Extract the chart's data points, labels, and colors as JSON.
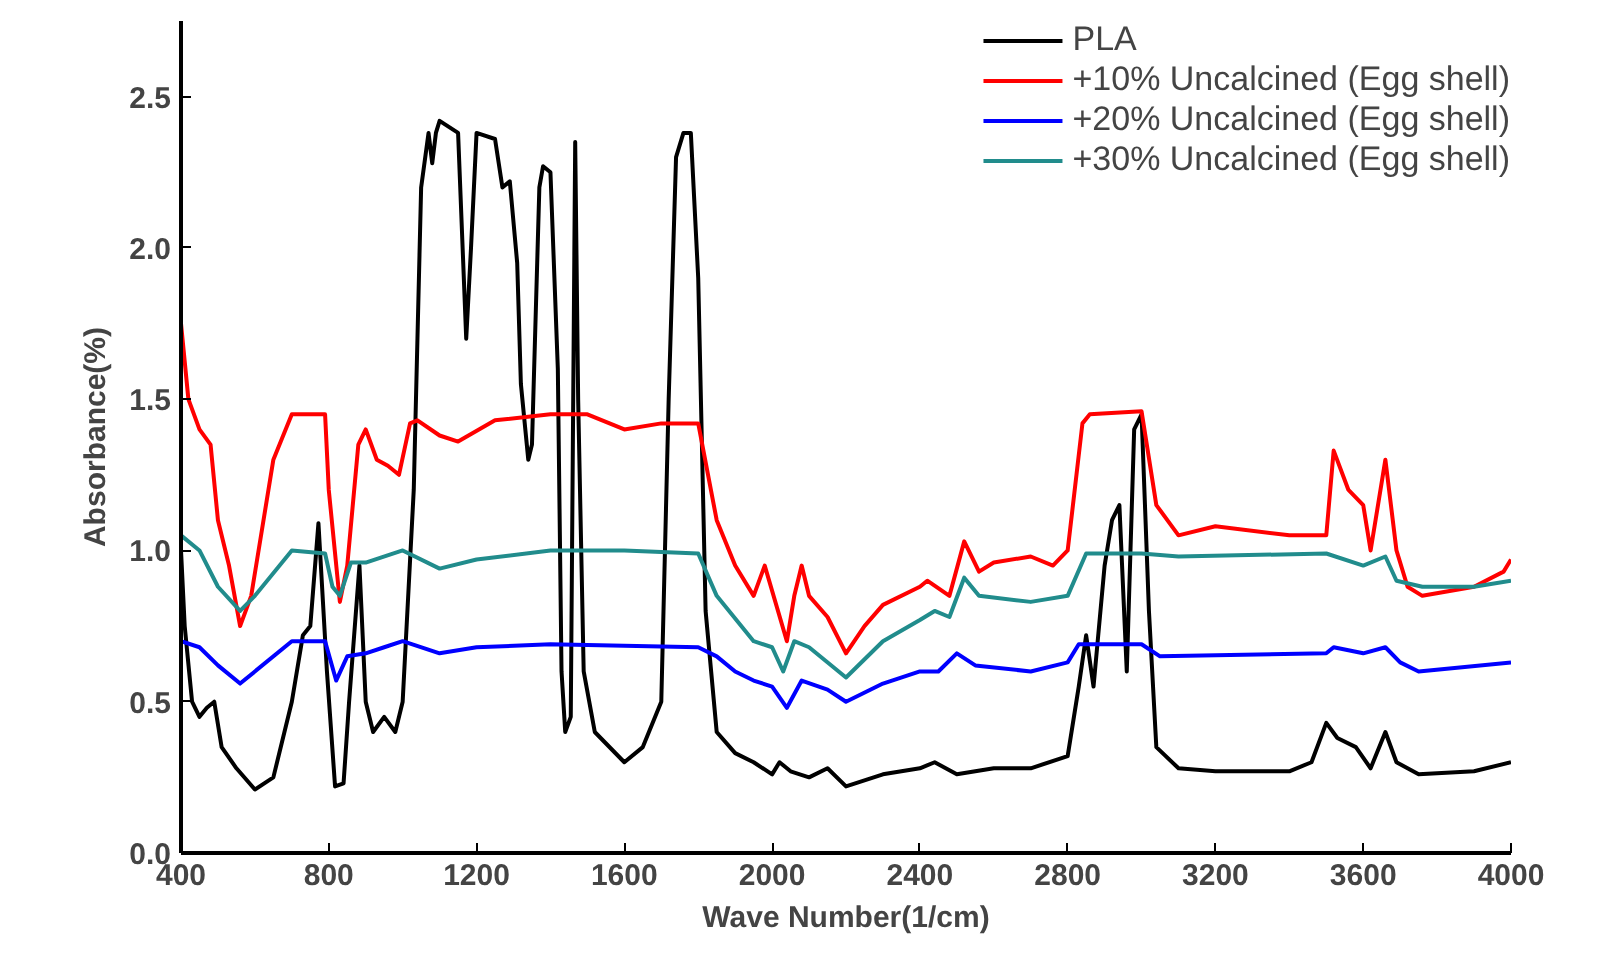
{
  "chart_data": {
    "type": "line",
    "xlabel": "Wave Number(1/cm)",
    "ylabel": "Absorbance(%)",
    "xlim": [
      400,
      4000
    ],
    "xticks": [
      400,
      800,
      1200,
      1600,
      2000,
      2400,
      2800,
      3200,
      3600,
      4000
    ],
    "ylim": [
      0,
      2.75
    ],
    "yticks": [
      {
        "value": 0,
        "label": "0.0"
      },
      {
        "value": 0.5,
        "label": "0.5"
      },
      {
        "value": 1,
        "label": "1.0"
      },
      {
        "value": 1.5,
        "label": "1.5"
      },
      {
        "value": 2,
        "label": "2.0"
      },
      {
        "value": 2.5,
        "label": "2.5"
      }
    ],
    "grid": false,
    "legend": "top right",
    "marker": "none",
    "line_style": "solid",
    "series": [
      {
        "name": "PLA",
        "color": "#000000",
        "x": [
          400,
          410,
          430,
          450,
          470,
          490,
          510,
          550,
          600,
          650,
          700,
          730,
          750,
          772,
          795,
          817,
          840,
          855,
          883,
          900,
          920,
          950,
          980,
          1000,
          1030,
          1050,
          1070,
          1080,
          1090,
          1100,
          1150,
          1172,
          1185,
          1200,
          1250,
          1270,
          1290,
          1310,
          1320,
          1340,
          1350,
          1370,
          1380,
          1400,
          1420,
          1430,
          1440,
          1455,
          1467,
          1475,
          1490,
          1520,
          1600,
          1650,
          1700,
          1720,
          1740,
          1760,
          1780,
          1800,
          1820,
          1850,
          1900,
          1950,
          2000,
          2020,
          2050,
          2100,
          2150,
          2200,
          2300,
          2400,
          2440,
          2500,
          2600,
          2700,
          2800,
          2830,
          2850,
          2870,
          2900,
          2920,
          2940,
          2960,
          2980,
          3000,
          3020,
          3040,
          3100,
          3200,
          3400,
          3460,
          3500,
          3530,
          3580,
          3620,
          3660,
          3690,
          3750,
          3900,
          4000
        ],
        "values": [
          1.0,
          0.75,
          0.5,
          0.45,
          0.48,
          0.5,
          0.35,
          0.28,
          0.21,
          0.25,
          0.5,
          0.72,
          0.75,
          1.09,
          0.6,
          0.22,
          0.23,
          0.5,
          0.95,
          0.5,
          0.4,
          0.45,
          0.4,
          0.5,
          1.2,
          2.2,
          2.38,
          2.28,
          2.38,
          2.42,
          2.38,
          1.7,
          2.0,
          2.38,
          2.36,
          2.2,
          2.22,
          1.95,
          1.55,
          1.3,
          1.35,
          2.2,
          2.27,
          2.25,
          1.6,
          0.6,
          0.4,
          0.45,
          2.35,
          1.5,
          0.6,
          0.4,
          0.3,
          0.35,
          0.5,
          1.5,
          2.3,
          2.38,
          2.38,
          1.9,
          0.8,
          0.4,
          0.33,
          0.3,
          0.26,
          0.3,
          0.27,
          0.25,
          0.28,
          0.22,
          0.26,
          0.28,
          0.3,
          0.26,
          0.28,
          0.28,
          0.32,
          0.55,
          0.72,
          0.55,
          0.95,
          1.1,
          1.15,
          0.6,
          1.4,
          1.45,
          0.8,
          0.35,
          0.28,
          0.27,
          0.27,
          0.3,
          0.43,
          0.38,
          0.35,
          0.28,
          0.4,
          0.3,
          0.26,
          0.27,
          0.3
        ]
      },
      {
        "name": "+10% Uncalcined (Egg shell)",
        "color": "#ff0000",
        "x": [
          400,
          420,
          450,
          480,
          500,
          530,
          560,
          590,
          650,
          700,
          750,
          790,
          800,
          830,
          850,
          880,
          900,
          930,
          960,
          990,
          1020,
          1040,
          1100,
          1150,
          1250,
          1400,
          1500,
          1600,
          1700,
          1800,
          1850,
          1900,
          1950,
          1980,
          2040,
          2060,
          2080,
          2100,
          2150,
          2200,
          2250,
          2300,
          2400,
          2420,
          2480,
          2520,
          2560,
          2600,
          2700,
          2760,
          2800,
          2840,
          2860,
          3000,
          3040,
          3100,
          3200,
          3400,
          3500,
          3520,
          3560,
          3600,
          3620,
          3660,
          3690,
          3720,
          3760,
          3900,
          3980,
          4000
        ],
        "values": [
          1.75,
          1.5,
          1.4,
          1.35,
          1.1,
          0.95,
          0.75,
          0.85,
          1.3,
          1.45,
          1.45,
          1.45,
          1.2,
          0.83,
          0.95,
          1.35,
          1.4,
          1.3,
          1.28,
          1.25,
          1.42,
          1.43,
          1.38,
          1.36,
          1.43,
          1.45,
          1.45,
          1.4,
          1.42,
          1.42,
          1.1,
          0.95,
          0.85,
          0.95,
          0.7,
          0.85,
          0.95,
          0.85,
          0.78,
          0.66,
          0.75,
          0.82,
          0.88,
          0.9,
          0.85,
          1.03,
          0.93,
          0.96,
          0.98,
          0.95,
          1.0,
          1.42,
          1.45,
          1.46,
          1.15,
          1.05,
          1.08,
          1.05,
          1.05,
          1.33,
          1.2,
          1.15,
          1.0,
          1.3,
          1.0,
          0.88,
          0.85,
          0.88,
          0.93,
          0.97
        ]
      },
      {
        "name": "+20% Uncalcined (Egg shell)",
        "color": "#0000ff",
        "x": [
          400,
          450,
          500,
          560,
          600,
          700,
          790,
          820,
          850,
          900,
          950,
          1000,
          1100,
          1200,
          1400,
          1800,
          1850,
          1900,
          1950,
          2000,
          2040,
          2080,
          2150,
          2200,
          2300,
          2400,
          2450,
          2500,
          2550,
          2700,
          2800,
          2830,
          3000,
          3050,
          3500,
          3520,
          3600,
          3660,
          3700,
          3750,
          4000
        ],
        "values": [
          0.7,
          0.68,
          0.62,
          0.56,
          0.6,
          0.7,
          0.7,
          0.57,
          0.65,
          0.66,
          0.68,
          0.7,
          0.66,
          0.68,
          0.69,
          0.68,
          0.65,
          0.6,
          0.57,
          0.55,
          0.48,
          0.57,
          0.54,
          0.5,
          0.56,
          0.6,
          0.6,
          0.66,
          0.62,
          0.6,
          0.63,
          0.69,
          0.69,
          0.65,
          0.66,
          0.68,
          0.66,
          0.68,
          0.63,
          0.6,
          0.63
        ]
      },
      {
        "name": "+30% Uncalcined (Egg shell)",
        "color": "#218c8c",
        "x": [
          400,
          450,
          500,
          560,
          600,
          700,
          790,
          810,
          830,
          860,
          900,
          1000,
          1100,
          1200,
          1400,
          1600,
          1800,
          1850,
          1950,
          2000,
          2030,
          2060,
          2100,
          2200,
          2300,
          2400,
          2440,
          2480,
          2520,
          2560,
          2700,
          2800,
          2850,
          3000,
          3100,
          3500,
          3600,
          3660,
          3690,
          3760,
          3900,
          4000
        ],
        "values": [
          1.05,
          1.0,
          0.88,
          0.8,
          0.85,
          1.0,
          0.99,
          0.88,
          0.85,
          0.96,
          0.96,
          1.0,
          0.94,
          0.97,
          1.0,
          1.0,
          0.99,
          0.85,
          0.7,
          0.68,
          0.6,
          0.7,
          0.68,
          0.58,
          0.7,
          0.77,
          0.8,
          0.78,
          0.91,
          0.85,
          0.83,
          0.85,
          0.99,
          0.99,
          0.98,
          0.99,
          0.95,
          0.98,
          0.9,
          0.88,
          0.88,
          0.9
        ]
      }
    ]
  }
}
